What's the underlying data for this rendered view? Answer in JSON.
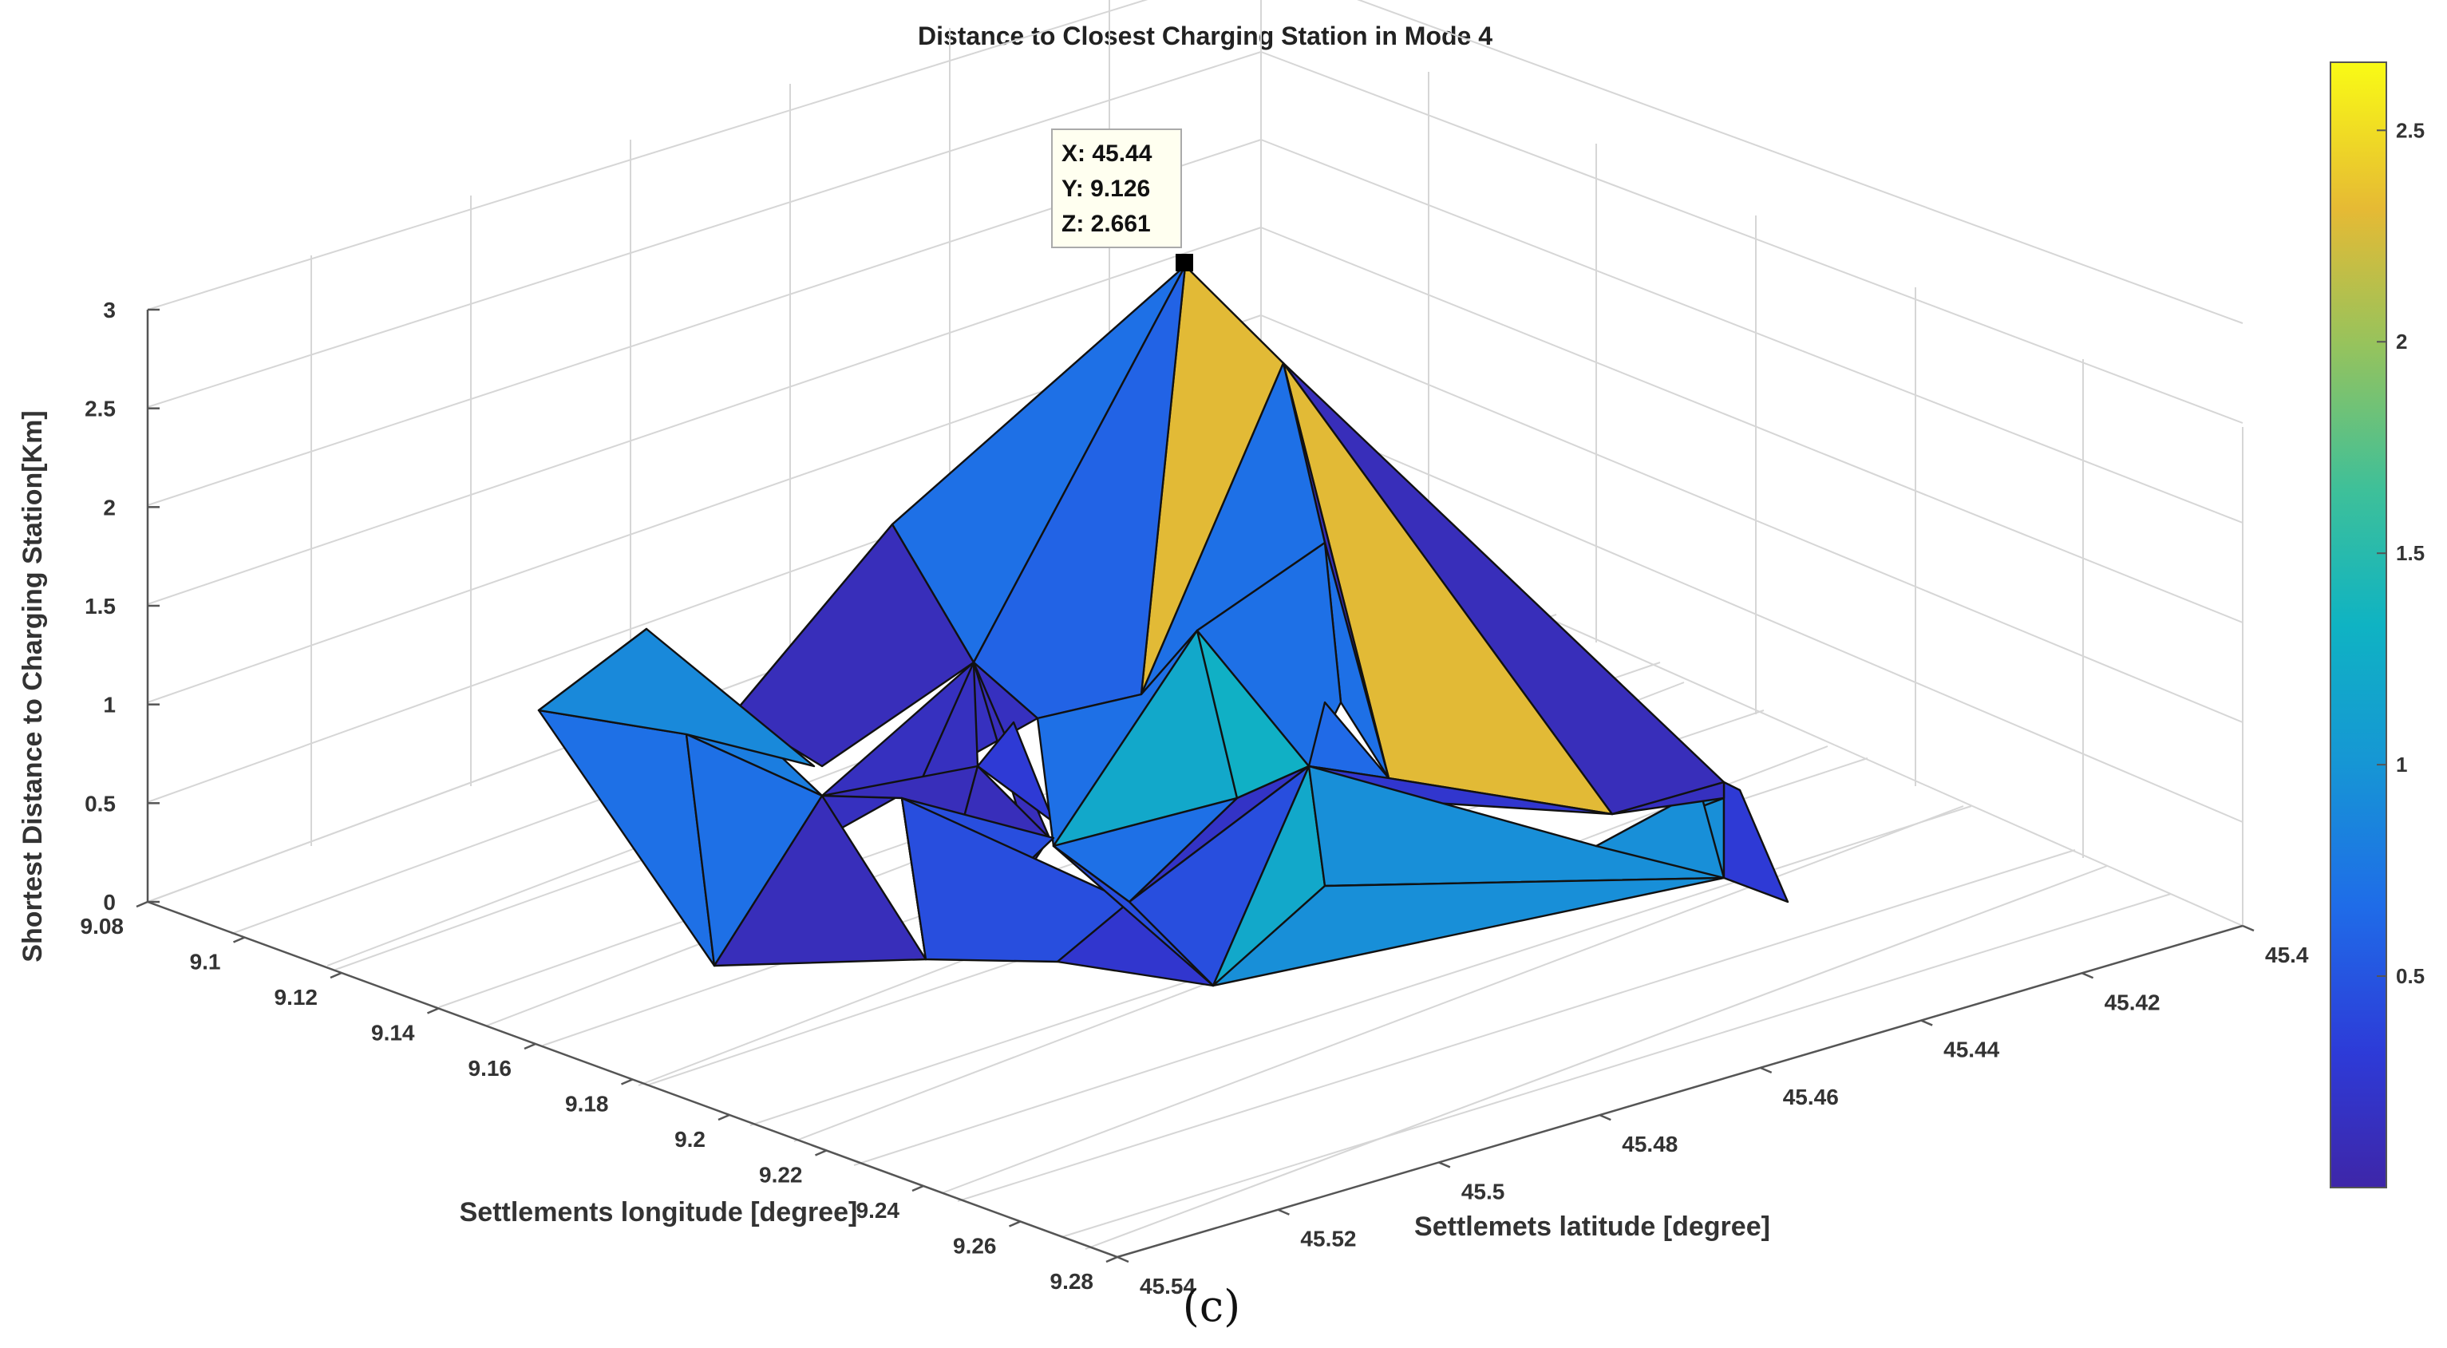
{
  "chart_data": {
    "type": "surface",
    "title": "Distance to Closest Charging Station in Mode 4",
    "xlabel": "Settlements longitude [degree]",
    "ylabel": "Settlemets latitude [degree]",
    "zlabel": "Shortest Distance to Charging Station[Km]",
    "x_ticks": [
      "9.08",
      "9.1",
      "9.12",
      "9.14",
      "9.16",
      "9.18",
      "9.2",
      "9.22",
      "9.24",
      "9.26",
      "9.28"
    ],
    "y_ticks": [
      "45.4",
      "45.42",
      "45.44",
      "45.46",
      "45.48",
      "45.5",
      "45.52",
      "45.54"
    ],
    "z_ticks": [
      "0",
      "0.5",
      "1",
      "1.5",
      "2",
      "2.5",
      "3"
    ],
    "xlim": [
      9.08,
      9.28
    ],
    "ylim": [
      45.4,
      45.54
    ],
    "zlim": [
      0,
      3
    ],
    "colorbar": {
      "ticks": [
        "0.5",
        "1",
        "1.5",
        "2",
        "2.5"
      ],
      "clim": [
        0,
        2.661
      ],
      "colormap": "parula"
    },
    "grid": true,
    "datatip": {
      "x_label": "X: 45.44",
      "y_label": "Y: 9.126",
      "z_label": "Z: 2.661",
      "x": 45.44,
      "y": 9.126,
      "z": 2.661
    },
    "facets": [
      {
        "name": "facet-1",
        "z": 0.12
      },
      {
        "name": "facet-2",
        "z": 0.7
      },
      {
        "name": "facet-3",
        "z": 2.3
      },
      {
        "name": "facet-4",
        "z": 0.6
      },
      {
        "name": "facet-5",
        "z": 2.3
      },
      {
        "name": "facet-6",
        "z": 0.12
      },
      {
        "name": "facet-7",
        "z": 0.12
      },
      {
        "name": "facet-8",
        "z": 0.12
      },
      {
        "name": "facet-9",
        "z": 0.7
      },
      {
        "name": "facet-10",
        "z": 0.7
      },
      {
        "name": "facet-11",
        "z": 0.75
      },
      {
        "name": "facet-12",
        "z": 0.8
      },
      {
        "name": "facet-13",
        "z": 0.7
      },
      {
        "name": "facet-14",
        "z": 0.7
      },
      {
        "name": "facet-15",
        "z": 0.15
      },
      {
        "name": "facet-16",
        "z": 0.15
      },
      {
        "name": "facet-17",
        "z": 0.12
      },
      {
        "name": "facet-18",
        "z": 0.3
      },
      {
        "name": "facet-19",
        "z": 0.7
      },
      {
        "name": "facet-20",
        "z": 1.2
      },
      {
        "name": "facet-21",
        "z": 1.3
      },
      {
        "name": "facet-22",
        "z": 0.7
      },
      {
        "name": "facet-23",
        "z": 0.2
      },
      {
        "name": "facet-24",
        "z": 0.7
      },
      {
        "name": "facet-25",
        "z": 0.65
      },
      {
        "name": "facet-26",
        "z": 0.12
      },
      {
        "name": "facet-27",
        "z": 0.12
      },
      {
        "name": "facet-28",
        "z": 0.12
      },
      {
        "name": "facet-29",
        "z": 0.45
      },
      {
        "name": "facet-30",
        "z": 0.45
      },
      {
        "name": "facet-31",
        "z": 0.25
      },
      {
        "name": "facet-32",
        "z": 0.45
      },
      {
        "name": "facet-33",
        "z": 0.45
      },
      {
        "name": "facet-34",
        "z": 0.25
      },
      {
        "name": "facet-35",
        "z": 1.2
      },
      {
        "name": "facet-36",
        "z": 0.95
      },
      {
        "name": "facet-37",
        "z": 0.95
      },
      {
        "name": "facet-38",
        "z": 0.95
      },
      {
        "name": "facet-39",
        "z": 0.95
      },
      {
        "name": "facet-40",
        "z": 0.9
      },
      {
        "name": "facet-41",
        "z": 0.3
      },
      {
        "name": "facet-42",
        "z": 0.15
      }
    ]
  },
  "caption": "(c)"
}
